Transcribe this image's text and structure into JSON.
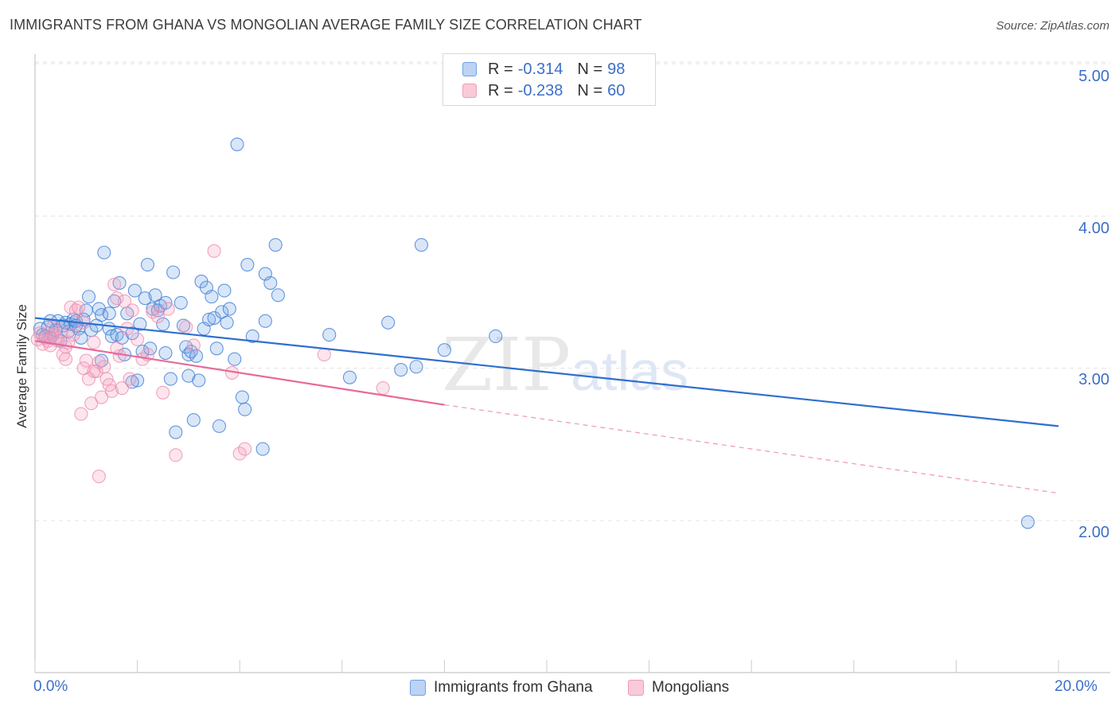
{
  "title": "IMMIGRANTS FROM GHANA VS MONGOLIAN AVERAGE FAMILY SIZE CORRELATION CHART",
  "source": "Source: ZipAtlas.com",
  "watermark": {
    "zip": "ZIP",
    "atlas": "atlas"
  },
  "legend": {
    "r_label": "R =",
    "n_label": "N =",
    "rows": [
      {
        "r": "-0.314",
        "n": "98",
        "color": "#6fa0e6",
        "fill": "#bcd3f5"
      },
      {
        "r": "-0.238",
        "n": "60",
        "color": "#f29bb6",
        "fill": "#f9cad8"
      }
    ]
  },
  "bottom_legend": [
    {
      "label": "Immigrants from Ghana"
    },
    {
      "label": "Mongolians"
    }
  ],
  "colors": {
    "blue": "#3f7fd6",
    "blue_line": "#2f6fcf",
    "pink": "#ee8fb0",
    "pink_line": "#e8699a",
    "tick": "#3b6fc9"
  },
  "chart_data": {
    "type": "scatter",
    "title": "IMMIGRANTS FROM GHANA VS MONGOLIAN AVERAGE FAMILY SIZE CORRELATION CHART",
    "xlabel": "",
    "ylabel": "Average Family Size",
    "x_tick_labels": [
      "0.0%",
      "20.0%"
    ],
    "y_tick_labels": [
      "2.00",
      "3.00",
      "4.00",
      "5.00"
    ],
    "y_ticks": [
      2.0,
      3.0,
      4.0,
      5.0
    ],
    "xlim": [
      0,
      20
    ],
    "ylim": [
      1.0,
      5.1
    ],
    "grid": true,
    "series": [
      {
        "name": "Immigrants from Ghana",
        "r": -0.314,
        "n": 98,
        "trend": {
          "x": [
            0,
            20
          ],
          "y": [
            3.33,
            2.62
          ]
        },
        "points": [
          [
            0.1,
            3.26
          ],
          [
            0.15,
            3.22
          ],
          [
            0.2,
            3.21
          ],
          [
            0.25,
            3.27
          ],
          [
            0.3,
            3.2
          ],
          [
            0.35,
            3.22
          ],
          [
            0.4,
            3.25
          ],
          [
            0.45,
            3.31
          ],
          [
            0.5,
            3.18
          ],
          [
            0.55,
            3.28
          ],
          [
            0.6,
            3.3
          ],
          [
            0.65,
            3.24
          ],
          [
            0.7,
            3.29
          ],
          [
            0.75,
            3.32
          ],
          [
            0.8,
            3.31
          ],
          [
            0.85,
            3.26
          ],
          [
            0.9,
            3.2
          ],
          [
            0.95,
            3.32
          ],
          [
            1.0,
            3.38
          ],
          [
            1.05,
            3.47
          ],
          [
            1.1,
            3.25
          ],
          [
            1.2,
            3.28
          ],
          [
            1.25,
            3.39
          ],
          [
            1.3,
            3.05
          ],
          [
            1.3,
            3.35
          ],
          [
            1.35,
            3.76
          ],
          [
            1.45,
            3.26
          ],
          [
            1.5,
            3.21
          ],
          [
            1.55,
            3.44
          ],
          [
            1.6,
            3.22
          ],
          [
            1.65,
            3.56
          ],
          [
            1.7,
            3.2
          ],
          [
            1.75,
            3.09
          ],
          [
            1.8,
            3.36
          ],
          [
            1.9,
            3.23
          ],
          [
            1.95,
            3.51
          ],
          [
            2.0,
            2.92
          ],
          [
            2.05,
            3.29
          ],
          [
            2.1,
            3.11
          ],
          [
            2.15,
            3.46
          ],
          [
            2.2,
            3.68
          ],
          [
            2.25,
            3.13
          ],
          [
            2.3,
            3.39
          ],
          [
            2.35,
            3.48
          ],
          [
            2.4,
            3.38
          ],
          [
            2.45,
            3.41
          ],
          [
            2.5,
            3.29
          ],
          [
            2.55,
            3.1
          ],
          [
            2.65,
            2.93
          ],
          [
            2.7,
            3.63
          ],
          [
            2.75,
            2.58
          ],
          [
            2.85,
            3.43
          ],
          [
            2.9,
            3.28
          ],
          [
            2.95,
            3.14
          ],
          [
            3.0,
            3.09
          ],
          [
            3.0,
            2.95
          ],
          [
            3.05,
            3.11
          ],
          [
            3.15,
            3.08
          ],
          [
            3.2,
            2.92
          ],
          [
            3.25,
            3.57
          ],
          [
            3.3,
            3.26
          ],
          [
            3.35,
            3.53
          ],
          [
            3.4,
            3.32
          ],
          [
            3.45,
            3.47
          ],
          [
            3.5,
            3.33
          ],
          [
            3.55,
            3.13
          ],
          [
            3.6,
            2.62
          ],
          [
            3.65,
            3.37
          ],
          [
            3.7,
            3.51
          ],
          [
            3.75,
            3.3
          ],
          [
            3.8,
            3.39
          ],
          [
            3.9,
            3.06
          ],
          [
            3.95,
            4.47
          ],
          [
            4.05,
            2.81
          ],
          [
            4.1,
            2.73
          ],
          [
            4.15,
            3.68
          ],
          [
            4.25,
            3.21
          ],
          [
            4.45,
            2.47
          ],
          [
            4.5,
            3.31
          ],
          [
            4.5,
            3.62
          ],
          [
            4.6,
            3.56
          ],
          [
            4.7,
            3.81
          ],
          [
            4.75,
            3.48
          ],
          [
            5.75,
            3.22
          ],
          [
            6.15,
            2.94
          ],
          [
            6.9,
            3.3
          ],
          [
            7.15,
            2.99
          ],
          [
            7.45,
            3.01
          ],
          [
            7.55,
            3.81
          ],
          [
            8.0,
            3.12
          ],
          [
            9.0,
            3.21
          ],
          [
            19.4,
            1.99
          ],
          [
            0.3,
            3.31
          ],
          [
            0.8,
            3.28
          ],
          [
            1.45,
            3.36
          ],
          [
            2.55,
            3.43
          ],
          [
            3.1,
            2.66
          ],
          [
            1.9,
            2.91
          ]
        ]
      },
      {
        "name": "Mongolians",
        "r": -0.238,
        "n": 60,
        "trend": {
          "x": [
            0,
            8.0
          ],
          "y": [
            3.18,
            2.76
          ]
        },
        "trend_dashed": {
          "x": [
            8.0,
            20
          ],
          "y": [
            2.76,
            2.18
          ]
        },
        "points": [
          [
            0.05,
            3.19
          ],
          [
            0.1,
            3.23
          ],
          [
            0.15,
            3.16
          ],
          [
            0.2,
            3.2
          ],
          [
            0.25,
            3.18
          ],
          [
            0.3,
            3.15
          ],
          [
            0.35,
            3.22
          ],
          [
            0.4,
            3.2
          ],
          [
            0.45,
            3.18
          ],
          [
            0.5,
            3.24
          ],
          [
            0.55,
            3.09
          ],
          [
            0.6,
            3.06
          ],
          [
            0.65,
            3.17
          ],
          [
            0.7,
            3.4
          ],
          [
            0.75,
            3.22
          ],
          [
            0.8,
            3.38
          ],
          [
            0.85,
            3.4
          ],
          [
            0.9,
            2.7
          ],
          [
            0.95,
            3.0
          ],
          [
            1.0,
            3.05
          ],
          [
            1.05,
            2.93
          ],
          [
            1.1,
            2.77
          ],
          [
            1.15,
            3.17
          ],
          [
            1.2,
            2.98
          ],
          [
            1.25,
            3.04
          ],
          [
            1.3,
            2.81
          ],
          [
            1.35,
            3.01
          ],
          [
            1.4,
            2.93
          ],
          [
            1.45,
            2.89
          ],
          [
            1.5,
            2.85
          ],
          [
            1.55,
            3.55
          ],
          [
            1.6,
            3.46
          ],
          [
            1.65,
            3.08
          ],
          [
            1.7,
            2.87
          ],
          [
            1.75,
            3.44
          ],
          [
            1.8,
            3.26
          ],
          [
            1.85,
            2.93
          ],
          [
            1.9,
            3.38
          ],
          [
            2.0,
            3.19
          ],
          [
            2.1,
            3.06
          ],
          [
            2.2,
            3.09
          ],
          [
            2.3,
            3.37
          ],
          [
            2.5,
            2.84
          ],
          [
            2.6,
            3.39
          ],
          [
            2.75,
            2.43
          ],
          [
            2.95,
            3.27
          ],
          [
            3.1,
            3.15
          ],
          [
            3.5,
            3.77
          ],
          [
            3.85,
            2.97
          ],
          [
            4.0,
            2.44
          ],
          [
            4.1,
            2.47
          ],
          [
            5.65,
            3.09
          ],
          [
            6.8,
            2.87
          ],
          [
            1.25,
            2.29
          ],
          [
            0.6,
            3.14
          ],
          [
            0.95,
            3.3
          ],
          [
            1.15,
            2.98
          ],
          [
            1.6,
            3.13
          ],
          [
            2.4,
            3.34
          ],
          [
            0.35,
            3.27
          ]
        ]
      }
    ]
  }
}
